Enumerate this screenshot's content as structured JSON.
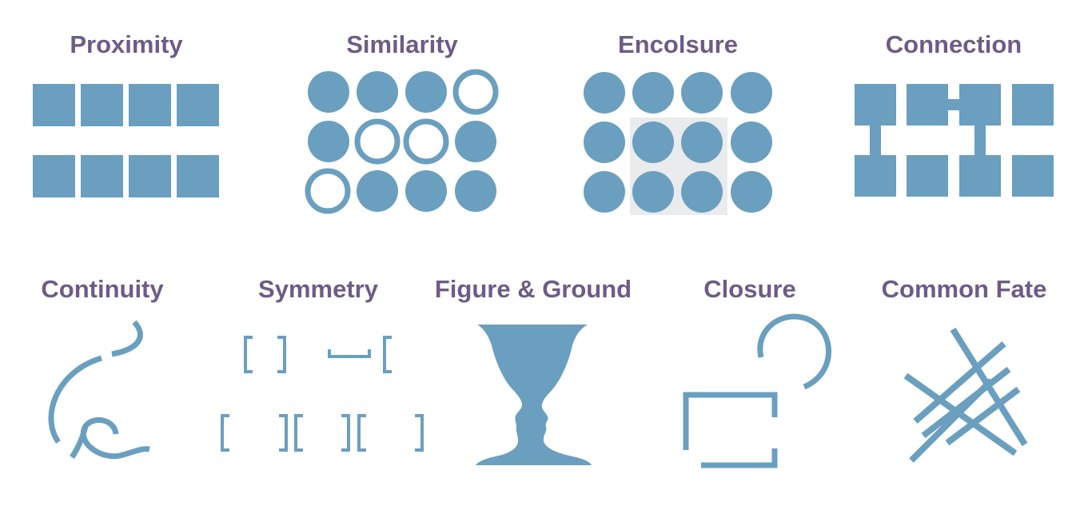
{
  "colors": {
    "shape": "#6a9fbf",
    "title": "#6d5c86",
    "enclosure_background": "#eaebed"
  },
  "principles": [
    {
      "key": "proximity",
      "title": "Proximity"
    },
    {
      "key": "similarity",
      "title": "Similarity"
    },
    {
      "key": "enclosure",
      "title": "Encolsure"
    },
    {
      "key": "connection",
      "title": "Connection"
    },
    {
      "key": "continuity",
      "title": "Continuity"
    },
    {
      "key": "symmetry",
      "title": "Symmetry"
    },
    {
      "key": "figure_ground",
      "title": "Figure & Ground"
    },
    {
      "key": "closure",
      "title": "Closure"
    },
    {
      "key": "common_fate",
      "title": "Common Fate"
    }
  ]
}
